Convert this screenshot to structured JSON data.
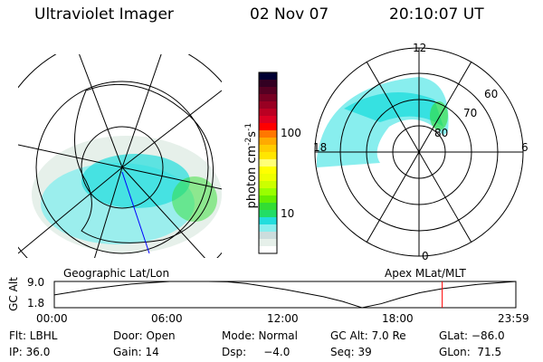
{
  "header": {
    "instrument": "Ultraviolet Imager",
    "date": "02 Nov 07",
    "time": "20:10:07 UT"
  },
  "left_map": {
    "label": "Geographic Lat/Lon"
  },
  "right_map": {
    "label": "Apex MLat/MLT",
    "mlt_labels": [
      "12",
      "18",
      "6",
      "0"
    ],
    "lat_labels": [
      "60",
      "70",
      "80"
    ]
  },
  "colorbar": {
    "unit_label": "photon cm",
    "unit_exp1": "-2",
    "unit_mid": "s",
    "unit_exp2": "-1",
    "ticks": [
      "100",
      "10"
    ],
    "colors": [
      "#000033",
      "#330022",
      "#550022",
      "#770022",
      "#990022",
      "#bb0022",
      "#dd0022",
      "#ff0000",
      "#ff7700",
      "#ffaa00",
      "#ffcc00",
      "#ffe600",
      "#ffff77",
      "#ffff00",
      "#eeff00",
      "#ccff00",
      "#99ff00",
      "#66ee00",
      "#33dd33",
      "#22dd66",
      "#22dddd",
      "#88eeee",
      "#ccdddd",
      "#e6f0ea",
      "#ffffff"
    ]
  },
  "chart_data": {
    "type": "line",
    "ylabel": "GC Alt",
    "yticks": [
      "9.0",
      "1.8"
    ],
    "ylim": [
      1.8,
      9.0
    ],
    "xticks": [
      "00:00",
      "06:00",
      "12:00",
      "18:00",
      "23:59"
    ],
    "xlim": [
      0,
      24
    ],
    "x": [
      0,
      2,
      4,
      6,
      8,
      9,
      10,
      12,
      14,
      15,
      16,
      17,
      18,
      19,
      20.17,
      22,
      24
    ],
    "y": [
      5.3,
      7.0,
      8.3,
      9.0,
      9.0,
      8.9,
      8.4,
      6.8,
      4.8,
      3.5,
      1.8,
      2.9,
      4.5,
      5.9,
      7.0,
      8.2,
      9.0
    ],
    "marker_time": 20.17,
    "marker_color": "#ff0000"
  },
  "status": {
    "flt": "Flt: LBHL",
    "door": "Door: Open",
    "mode": "Mode: Normal",
    "gcalt": "GC Alt: 7.0 Re",
    "glat": "GLat: −86.0",
    "ip": "IP: 36.0",
    "gain": "Gain: 14",
    "dsp": "Dsp:     −4.0",
    "seq": "Seq: 39",
    "glon": "GLon:  71.5"
  }
}
